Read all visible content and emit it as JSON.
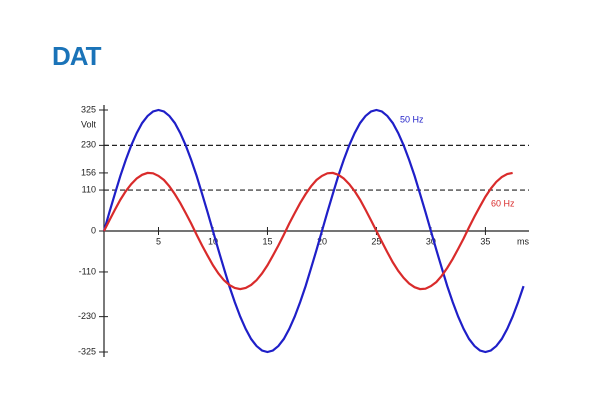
{
  "logo": "DAT",
  "chart_data": {
    "type": "line",
    "y_label": "Volt",
    "x_label": "ms",
    "x": [
      0,
      0.5,
      1,
      1.5,
      2,
      2.5,
      3,
      3.5,
      4,
      4.5,
      5,
      5.5,
      6,
      6.5,
      7,
      7.5,
      8,
      8.5,
      9,
      9.5,
      10,
      10.5,
      11,
      11.5,
      12,
      12.5,
      13,
      13.5,
      14,
      14.5,
      15,
      15.5,
      16,
      16.5,
      17,
      17.5,
      18,
      18.5,
      19,
      19.5,
      20,
      20.5,
      21,
      21.5,
      22,
      22.5,
      23,
      23.5,
      24,
      24.5,
      25,
      25.5,
      26,
      26.5,
      27,
      27.5,
      28,
      28.5,
      29,
      29.5,
      30,
      30.5,
      31,
      31.5,
      32,
      32.5,
      33,
      33.5,
      34,
      34.5,
      35,
      35.5,
      36,
      36.5,
      37,
      37.5,
      38,
      38.5
    ],
    "series": [
      {
        "name": "50 Hz",
        "color": "#1f1fc8",
        "values": [
          0,
          51,
          100,
          148,
          191,
          230,
          263,
          290,
          309,
          321,
          325,
          321,
          309,
          290,
          263,
          230,
          191,
          148,
          100,
          51,
          0,
          -51,
          -100,
          -148,
          -191,
          -230,
          -263,
          -290,
          -309,
          -321,
          -325,
          -321,
          -309,
          -290,
          -263,
          -230,
          -191,
          -148,
          -100,
          -51,
          0,
          51,
          100,
          148,
          191,
          230,
          263,
          290,
          309,
          321,
          325,
          321,
          309,
          290,
          263,
          230,
          191,
          148,
          100,
          51,
          0,
          -51,
          -100,
          -148,
          -191,
          -230,
          -263,
          -290,
          -309,
          -321,
          -325,
          -321,
          -309,
          -290,
          -263,
          -230,
          -191,
          -148
        ]
      },
      {
        "name": "60 Hz",
        "color": "#d92b2b",
        "values": [
          0,
          29,
          57,
          84,
          107,
          126,
          141,
          151,
          156,
          155,
          148,
          137,
          120,
          99,
          75,
          48,
          20,
          -10,
          -39,
          -66,
          -92,
          -114,
          -132,
          -145,
          -153,
          -156,
          -153,
          -145,
          -132,
          -114,
          -92,
          -66,
          -39,
          -10,
          20,
          48,
          75,
          99,
          120,
          137,
          148,
          155,
          156,
          151,
          141,
          126,
          107,
          84,
          57,
          29,
          0,
          -29,
          -57,
          -84,
          -107,
          -126,
          -141,
          -151,
          -156,
          -155,
          -148,
          -137,
          -120,
          -99,
          -75,
          -48,
          -20,
          10,
          39,
          66,
          92,
          114,
          132,
          145,
          153,
          156,
          null,
          null
        ]
      }
    ],
    "xlim": [
      0,
      39
    ],
    "ylim": [
      -325,
      325
    ],
    "xticks": [
      5,
      10,
      15,
      20,
      25,
      30,
      35
    ],
    "yticks": [
      325,
      230,
      156,
      110,
      0,
      -110,
      -230,
      -325
    ],
    "reference_lines": [
      230,
      110
    ]
  }
}
